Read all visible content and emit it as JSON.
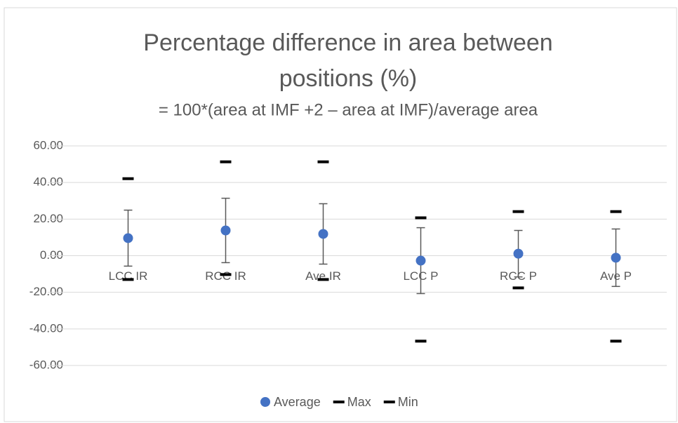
{
  "chart_data": {
    "type": "scatter",
    "title": "Percentage difference in area between positions (%)",
    "subtitle": "= 100*(area at IMF +2 – area at IMF)/average area",
    "categories": [
      "LCC IR",
      "RCC IR",
      "Ave IR",
      "LCC P",
      "RCC P",
      "Ave P"
    ],
    "series": [
      {
        "name": "Average",
        "color": "#4472c4",
        "marker": "circle",
        "values": [
          9.6,
          13.8,
          11.9,
          -2.7,
          1.1,
          -1.1
        ],
        "errors": [
          15.3,
          17.6,
          16.5,
          18.0,
          12.7,
          15.7
        ]
      },
      {
        "name": "Max",
        "color": "#000000",
        "marker": "dash",
        "values": [
          42.1,
          51.3,
          51.3,
          20.7,
          24.1,
          24.1
        ]
      },
      {
        "name": "Min",
        "color": "#000000",
        "marker": "dash",
        "values": [
          -13.0,
          -10.3,
          -13.0,
          -46.7,
          -17.6,
          -46.7
        ]
      }
    ],
    "ylim": [
      -60,
      60
    ],
    "yticks": [
      {
        "value": -60,
        "label": "-60.00"
      },
      {
        "value": -40,
        "label": "-40.00"
      },
      {
        "value": -20,
        "label": "-20.00"
      },
      {
        "value": 0,
        "label": "0.00"
      },
      {
        "value": 20,
        "label": "20.00"
      },
      {
        "value": 40,
        "label": "40.00"
      },
      {
        "value": 60,
        "label": "60.00"
      }
    ],
    "grid": true,
    "legend": "bottom"
  }
}
